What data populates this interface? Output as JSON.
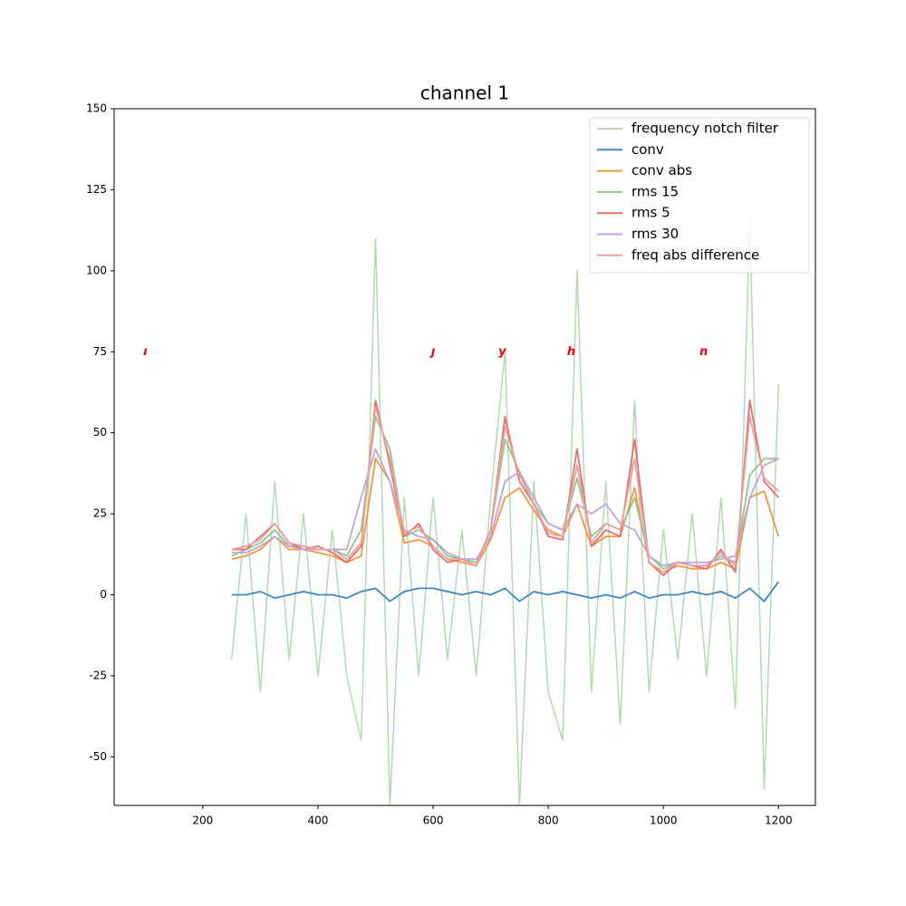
{
  "chart_data": {
    "type": "line",
    "title": "channel 1",
    "x": [
      250,
      275,
      300,
      325,
      350,
      375,
      400,
      425,
      450,
      475,
      500,
      525,
      550,
      575,
      600,
      625,
      650,
      675,
      700,
      725,
      750,
      775,
      800,
      825,
      850,
      875,
      900,
      925,
      950,
      975,
      1000,
      1025,
      1050,
      1075,
      1100,
      1125,
      1150,
      1175,
      1200
    ],
    "series": [
      {
        "name": "frequency notch filter",
        "color": "#b3dab3",
        "values": [
          -20,
          25,
          -30,
          35,
          -20,
          25,
          -25,
          20,
          -25,
          -45,
          110,
          -65,
          30,
          -25,
          30,
          -20,
          20,
          -25,
          30,
          75,
          -65,
          35,
          -30,
          -45,
          100,
          -30,
          35,
          -40,
          60,
          -30,
          20,
          -20,
          25,
          -25,
          30,
          -35,
          115,
          -60,
          65
        ]
      },
      {
        "name": "conv",
        "color": "#3c8abf",
        "values": [
          0,
          0,
          1,
          -1,
          0,
          1,
          0,
          0,
          -1,
          1,
          2,
          -2,
          1,
          2,
          2,
          1,
          0,
          1,
          0,
          2,
          -2,
          1,
          0,
          1,
          0,
          -1,
          0,
          -1,
          1,
          -1,
          0,
          0,
          1,
          0,
          1,
          -1,
          2,
          -2,
          4
        ]
      },
      {
        "name": "conv abs",
        "color": "#f5993f",
        "values": [
          11,
          12,
          14,
          18,
          14,
          14,
          13,
          12,
          10,
          12,
          42,
          35,
          16,
          17,
          15,
          11,
          10,
          9,
          17,
          30,
          33,
          26,
          20,
          18,
          28,
          15,
          18,
          18,
          33,
          10,
          7,
          9,
          8,
          8,
          10,
          8,
          30,
          32,
          18
        ]
      },
      {
        "name": "rms 15",
        "color": "#8cc98c",
        "values": [
          12,
          14,
          16,
          20,
          15,
          15,
          14,
          14,
          12,
          20,
          55,
          45,
          18,
          20,
          17,
          12,
          11,
          10,
          20,
          48,
          38,
          28,
          22,
          20,
          36,
          18,
          22,
          20,
          30,
          12,
          8,
          10,
          9,
          9,
          12,
          10,
          37,
          42,
          42
        ]
      },
      {
        "name": "rms 5",
        "color": "#e56f6f",
        "values": [
          14,
          14,
          18,
          22,
          16,
          14,
          15,
          13,
          10,
          15,
          60,
          40,
          18,
          22,
          14,
          10,
          11,
          9,
          20,
          55,
          35,
          28,
          18,
          17,
          45,
          15,
          20,
          18,
          48,
          10,
          6,
          10,
          9,
          8,
          14,
          7,
          60,
          35,
          30
        ]
      },
      {
        "name": "rms 30",
        "color": "#bfa5d9",
        "values": [
          13,
          13,
          15,
          18,
          15,
          14,
          14,
          14,
          14,
          30,
          45,
          35,
          20,
          18,
          17,
          13,
          11,
          11,
          18,
          35,
          38,
          30,
          22,
          20,
          28,
          25,
          28,
          22,
          20,
          12,
          9,
          10,
          10,
          10,
          11,
          12,
          30,
          40,
          42
        ]
      },
      {
        "name": "freq abs difference",
        "color": "#eea0a0",
        "values": [
          14,
          15,
          17,
          22,
          16,
          15,
          14,
          14,
          11,
          16,
          58,
          42,
          19,
          21,
          15,
          11,
          11,
          9,
          20,
          52,
          37,
          28,
          19,
          18,
          40,
          16,
          22,
          20,
          42,
          10,
          7,
          10,
          9,
          9,
          13,
          9,
          55,
          36,
          32
        ]
      }
    ],
    "annotations": [
      {
        "text": "ı",
        "x": 100,
        "y": 75
      },
      {
        "text": "ȷ",
        "x": 600,
        "y": 75
      },
      {
        "text": "y",
        "x": 720,
        "y": 75
      },
      {
        "text": "h",
        "x": 840,
        "y": 75
      },
      {
        "text": "n",
        "x": 1070,
        "y": 75
      }
    ],
    "annotation_color": "#ff0000",
    "xlim": [
      46,
      1264
    ],
    "ylim": [
      -65,
      150
    ],
    "xticks": [
      200,
      400,
      600,
      800,
      1000,
      1200
    ],
    "yticks": [
      -50,
      -25,
      0,
      25,
      50,
      75,
      100,
      125,
      150
    ],
    "legend": "upper right"
  }
}
